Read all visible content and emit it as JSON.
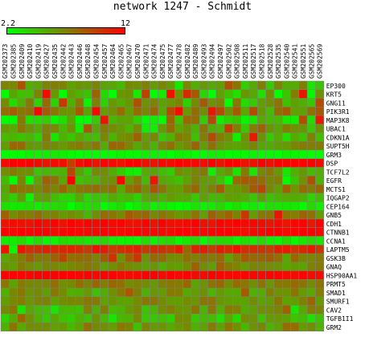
{
  "chart_data": {
    "type": "heatmap",
    "title": "network 1247 - Schmidt",
    "color_scale": {
      "min": 2.2,
      "max": 12,
      "min_label": "2.2",
      "max_label": "12",
      "low_color": "#00ff00",
      "mid_color": "#808000",
      "high_color": "#ff0000"
    },
    "columns": [
      "GSM202373",
      "GSM202385",
      "GSM202409",
      "GSM202410",
      "GSM202419",
      "GSM202427",
      "GSM202435",
      "GSM202442",
      "GSM202443",
      "GSM202446",
      "GSM202448",
      "GSM202454",
      "GSM202457",
      "GSM202464",
      "GSM202465",
      "GSM202467",
      "GSM202470",
      "GSM202471",
      "GSM202474",
      "GSM202475",
      "GSM202477",
      "GSM202478",
      "GSM202482",
      "GSM202489",
      "GSM202493",
      "GSM202494",
      "GSM202497",
      "GSM202502",
      "GSM202508",
      "GSM202511",
      "GSM202517",
      "GSM202518",
      "GSM202528",
      "GSM202535",
      "GSM202540",
      "GSM202541",
      "GSM202551",
      "GSM202565",
      "GSM202569"
    ],
    "rows": [
      "EP300",
      "KRT5",
      "GNG11",
      "PIK3R1",
      "MAP3K8",
      "UBAC1",
      "CDKN1A",
      "SUPT5H",
      "GRM3",
      "DSP",
      "TCF7L2",
      "EGFR",
      "MCTS1",
      "IQGAP2",
      "CEP164",
      "GNB5",
      "CDH1",
      "CTNNB1",
      "CCNA1",
      "LAPTM5",
      "GSK3B",
      "GNAQ",
      "HSP90AA1",
      "PRMT5",
      "SMAD1",
      "SMURF1",
      "CAV2",
      "TGFB1I1",
      "GRM2"
    ],
    "row_profiles": [
      [
        6.4,
        0.8,
        1.4
      ],
      [
        4.4,
        1.8,
        1.8
      ],
      [
        5.8,
        1.4,
        1.4
      ],
      [
        7.2,
        1.2,
        1.4
      ],
      [
        4.2,
        1.0,
        2.0
      ],
      [
        6.4,
        1.0,
        1.2
      ],
      [
        5.8,
        1.0,
        1.0
      ],
      [
        6.6,
        1.0,
        1.0
      ],
      [
        2.5,
        0.3,
        0.0
      ],
      [
        11.6,
        0.3,
        0.0
      ],
      [
        6.0,
        1.2,
        1.2
      ],
      [
        6.6,
        1.4,
        2.2
      ],
      [
        7.0,
        0.8,
        0.8
      ],
      [
        5.0,
        0.8,
        0.8
      ],
      [
        3.0,
        0.5,
        0.0
      ],
      [
        7.2,
        0.8,
        0.8
      ],
      [
        11.6,
        0.3,
        0.0
      ],
      [
        11.8,
        0.2,
        0.0
      ],
      [
        3.0,
        0.5,
        0.0
      ],
      [
        10.6,
        0.6,
        0.0
      ],
      [
        7.4,
        0.8,
        0.8
      ],
      [
        6.6,
        0.6,
        0.5
      ],
      [
        11.8,
        0.2,
        0.0
      ],
      [
        7.2,
        0.6,
        0.5
      ],
      [
        6.2,
        0.8,
        0.8
      ],
      [
        6.6,
        0.6,
        0.6
      ],
      [
        6.0,
        1.0,
        1.0
      ],
      [
        5.2,
        1.0,
        1.0
      ],
      [
        6.4,
        1.0,
        1.0
      ]
    ],
    "fixed_cells": [
      [
        1,
        0,
        2.4
      ],
      [
        1,
        5,
        11.6
      ],
      [
        1,
        20,
        11.4
      ],
      [
        1,
        36,
        11.2
      ],
      [
        1,
        37,
        2.4
      ],
      [
        3,
        4,
        11.8
      ],
      [
        3,
        11,
        11.6
      ],
      [
        3,
        21,
        11.5
      ],
      [
        4,
        0,
        2.2
      ],
      [
        4,
        6,
        2.4
      ],
      [
        4,
        12,
        11.2
      ],
      [
        4,
        19,
        2.3
      ],
      [
        4,
        29,
        2.5
      ],
      [
        4,
        38,
        11.0
      ],
      [
        11,
        1,
        2.2
      ],
      [
        11,
        3,
        2.3
      ],
      [
        11,
        14,
        11.8
      ],
      [
        11,
        27,
        2.6
      ],
      [
        11,
        34,
        2.4
      ],
      [
        2,
        10,
        2.6
      ],
      [
        5,
        17,
        2.8
      ],
      [
        6,
        30,
        11.0
      ],
      [
        9,
        8,
        9.5
      ],
      [
        10,
        25,
        2.8
      ],
      [
        13,
        3,
        2.6
      ],
      [
        15,
        33,
        11.2
      ],
      [
        19,
        1,
        2.6
      ],
      [
        19,
        22,
        8.0
      ]
    ]
  }
}
